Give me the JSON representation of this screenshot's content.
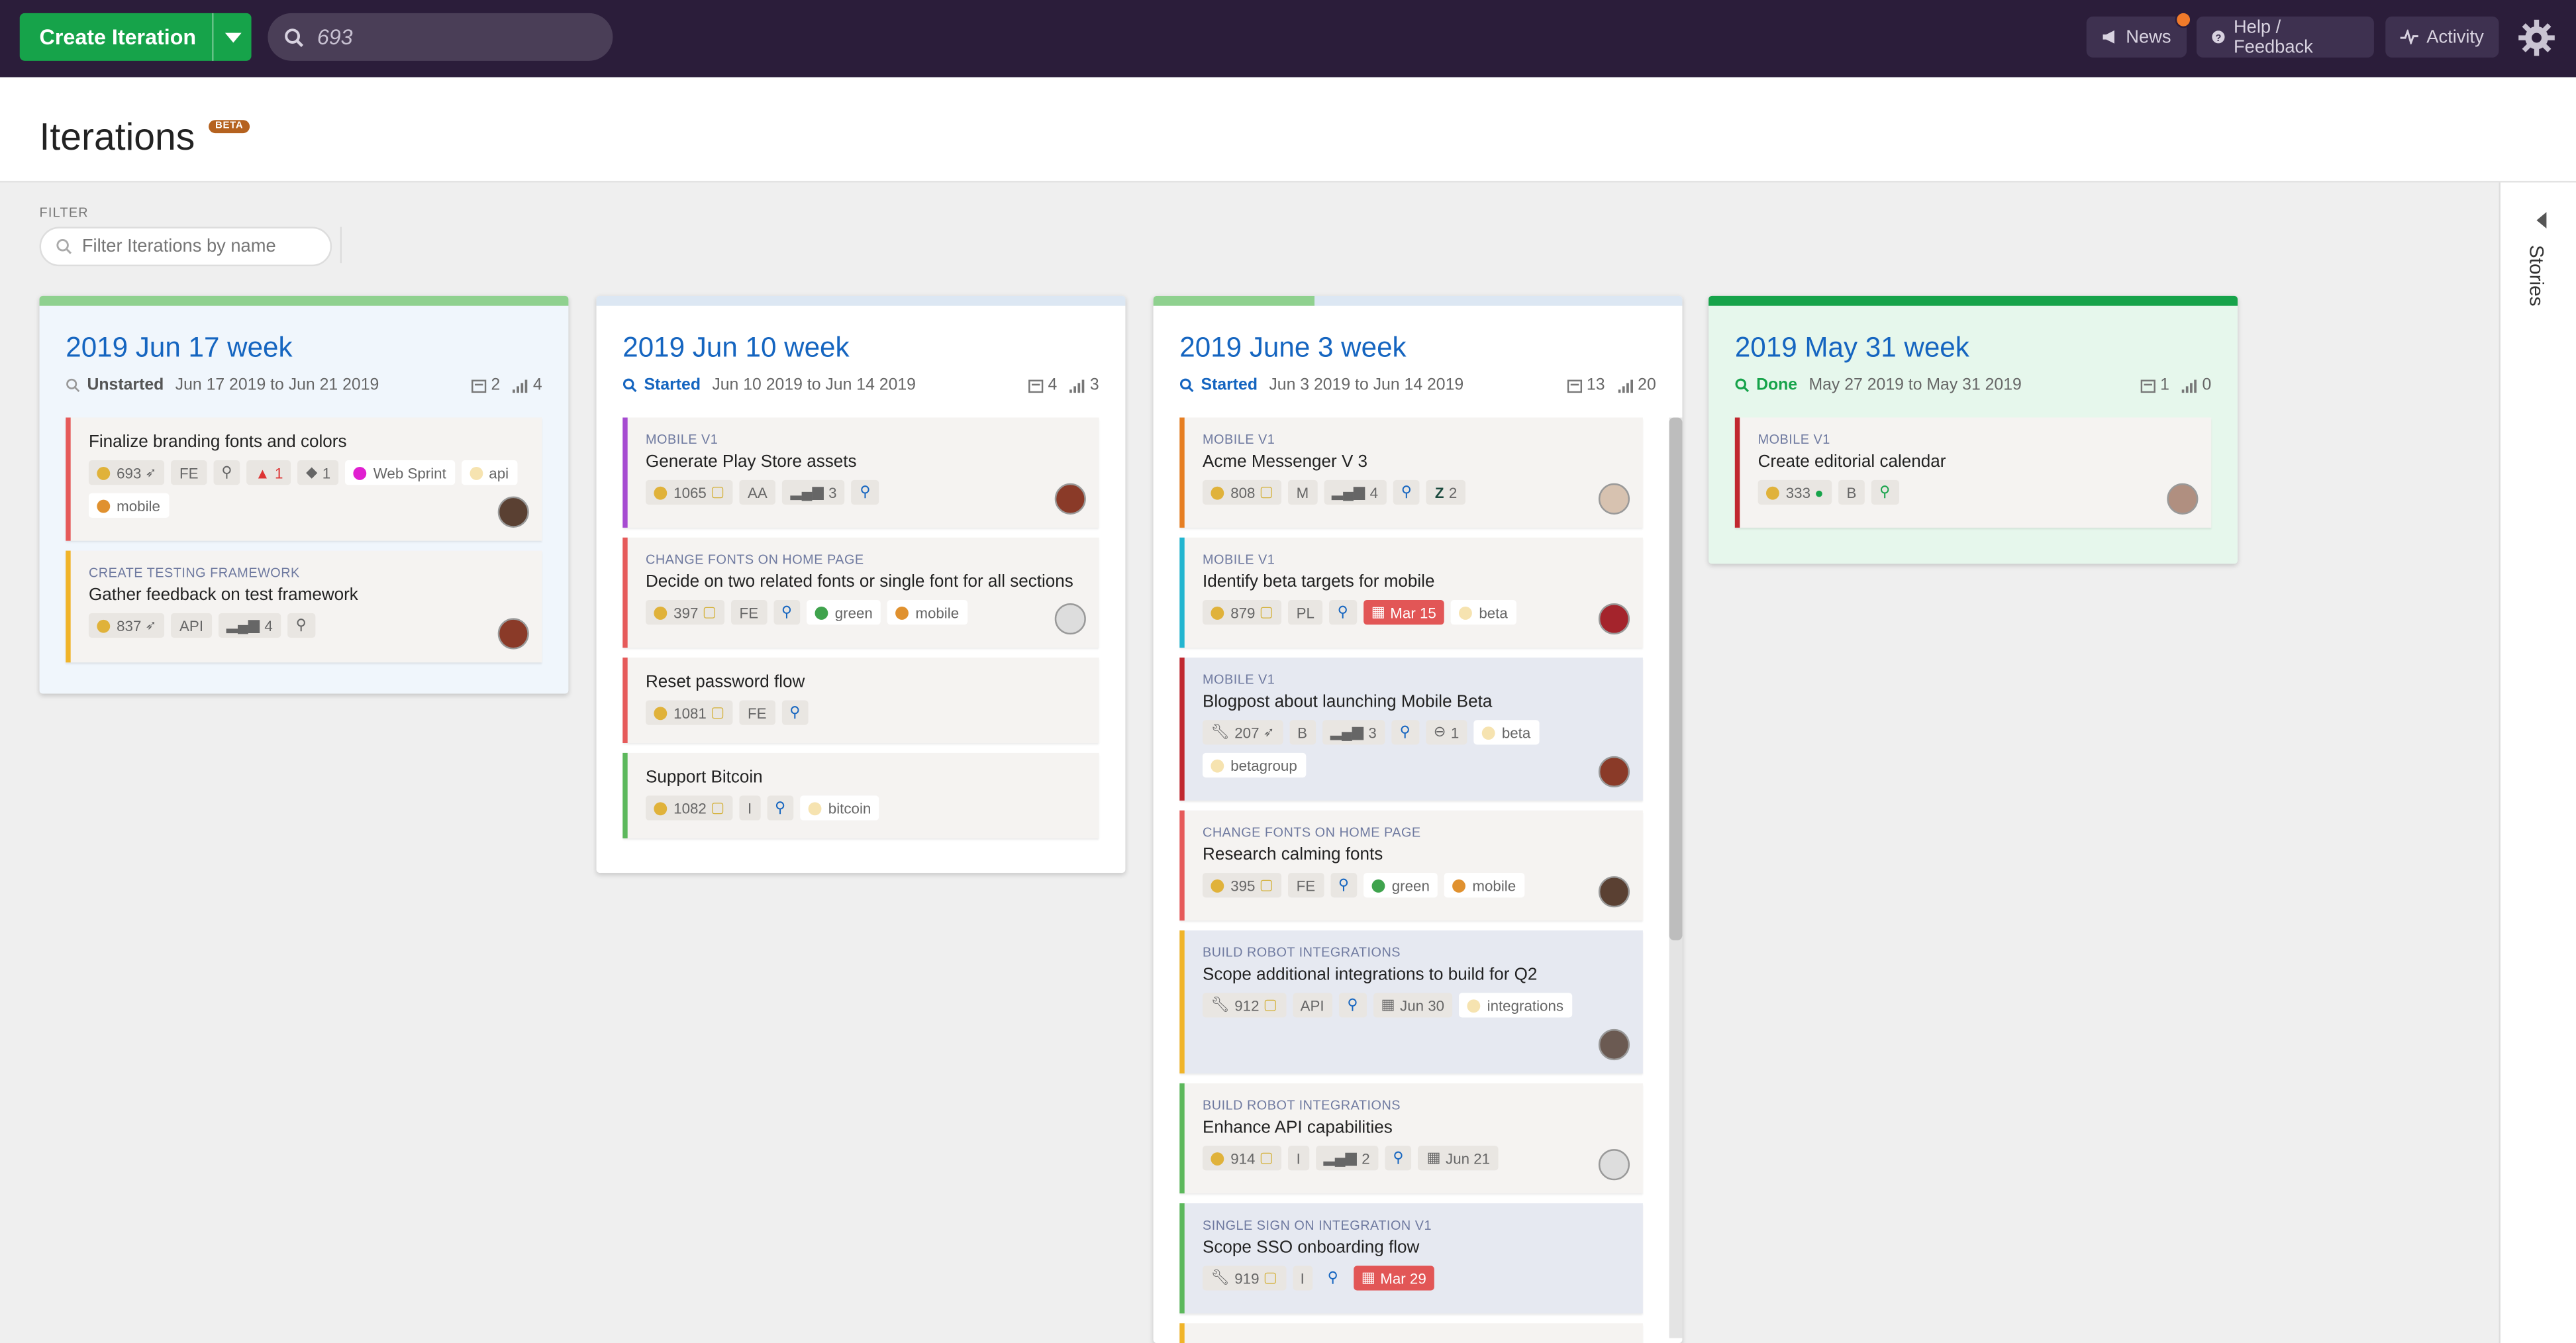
{
  "topbar": {
    "create_label": "Create Iteration",
    "search_value": "693",
    "news_label": "News",
    "help_label": "Help / Feedback",
    "activity_label": "Activity"
  },
  "header": {
    "title": "Iterations",
    "badge": "BETA"
  },
  "filter": {
    "label": "FILTER",
    "placeholder": "Filter Iterations by name"
  },
  "stories_panel": {
    "label": "Stories"
  },
  "colors": {
    "blue_title": "#1565c0",
    "green": "#16a34a",
    "topbar": "#2b1d3a"
  },
  "columns": [
    {
      "title": "2019 Jun 17 week",
      "state": "Unstarted",
      "dates": "Jun 17 2019 to Jun 21 2019",
      "stories_count": "2",
      "points": "4",
      "cards": [
        {
          "epic": "",
          "name": "Finalize branding fonts and colors",
          "chips": [
            "693",
            "FE",
            "",
            "1",
            "1"
          ],
          "labels": [
            "Web Sprint",
            "api",
            "mobile"
          ]
        },
        {
          "epic": "CREATE TESTING FRAMEWORK",
          "name": "Gather feedback on test framework",
          "chips": [
            "837",
            "API",
            "4",
            ""
          ]
        }
      ]
    },
    {
      "title": "2019 Jun 10 week",
      "state": "Started",
      "dates": "Jun 10 2019 to Jun 14 2019",
      "stories_count": "4",
      "points": "3",
      "cards": [
        {
          "epic": "MOBILE V1",
          "name": "Generate Play Store assets",
          "chips": [
            "1065",
            "AA",
            "3"
          ]
        },
        {
          "epic": "CHANGE FONTS ON HOME PAGE",
          "name": "Decide on two related fonts or single font for all sections",
          "chips": [
            "397",
            "FE"
          ],
          "labels": [
            "green",
            "mobile"
          ]
        },
        {
          "epic": "",
          "name": "Reset password flow",
          "chips": [
            "1081",
            "FE"
          ]
        },
        {
          "epic": "",
          "name": "Support Bitcoin",
          "chips": [
            "1082",
            "I"
          ],
          "labels": [
            "bitcoin"
          ]
        }
      ]
    },
    {
      "title": "2019 June 3 week",
      "state": "Started",
      "dates": "Jun 3 2019 to Jun 14 2019",
      "stories_count": "13",
      "points": "20",
      "cards": [
        {
          "epic": "MOBILE V1",
          "name": "Acme Messenger V 3",
          "chips": [
            "808",
            "M",
            "4",
            "2"
          ]
        },
        {
          "epic": "MOBILE V1",
          "name": "Identify beta targets for mobile",
          "chips": [
            "879",
            "PL"
          ],
          "date": "Mar 15",
          "labels": [
            "beta"
          ]
        },
        {
          "epic": "MOBILE V1",
          "name": "Blogpost about launching Mobile Beta",
          "chips": [
            "207",
            "B",
            "3",
            "1"
          ],
          "labels": [
            "beta",
            "betagroup"
          ]
        },
        {
          "epic": "CHANGE FONTS ON HOME PAGE",
          "name": "Research calming fonts",
          "chips": [
            "395",
            "FE"
          ],
          "labels": [
            "green",
            "mobile"
          ]
        },
        {
          "epic": "BUILD ROBOT INTEGRATIONS",
          "name": "Scope additional integrations to build for Q2",
          "chips": [
            "912",
            "API"
          ],
          "date": "Jun 30",
          "labels": [
            "integrations"
          ]
        },
        {
          "epic": "BUILD ROBOT INTEGRATIONS",
          "name": "Enhance API capabilities",
          "chips": [
            "914",
            "I",
            "2"
          ],
          "date": "Jun 21"
        },
        {
          "epic": "SINGLE SIGN ON INTEGRATION V1",
          "name": "Scope SSO onboarding flow",
          "chips": [
            "919",
            "I"
          ],
          "date": "Mar 29"
        }
      ]
    },
    {
      "title": "2019 May 31 week",
      "state": "Done",
      "dates": "May 27 2019 to May 31 2019",
      "stories_count": "1",
      "points": "0",
      "cards": [
        {
          "epic": "MOBILE V1",
          "name": "Create editorial calendar",
          "chips": [
            "333",
            "B"
          ]
        }
      ]
    }
  ]
}
